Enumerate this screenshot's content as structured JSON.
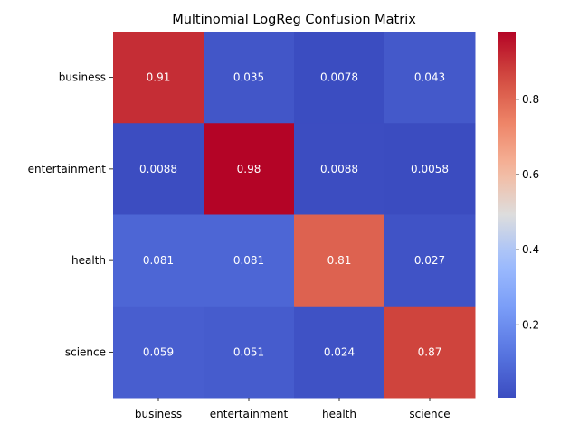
{
  "chart_data": {
    "type": "heatmap",
    "title": "Multinomial LogReg Confusion Matrix",
    "xlabel": "",
    "ylabel": "",
    "rows": [
      "business",
      "entertainment",
      "health",
      "science"
    ],
    "columns": [
      "business",
      "entertainment",
      "health",
      "science"
    ],
    "values": [
      [
        0.91,
        0.035,
        0.0078,
        0.043
      ],
      [
        0.0088,
        0.98,
        0.0088,
        0.0058
      ],
      [
        0.081,
        0.081,
        0.81,
        0.027
      ],
      [
        0.059,
        0.051,
        0.024,
        0.87
      ]
    ],
    "value_labels": [
      [
        "0.91",
        "0.035",
        "0.0078",
        "0.043"
      ],
      [
        "0.0088",
        "0.98",
        "0.0088",
        "0.0058"
      ],
      [
        "0.081",
        "0.081",
        "0.81",
        "0.027"
      ],
      [
        "0.059",
        "0.051",
        "0.024",
        "0.87"
      ]
    ],
    "colormap": "coolwarm",
    "colorbar": {
      "vmin": 0.0058,
      "vmax": 0.98,
      "ticks": [
        0.2,
        0.4,
        0.6,
        0.8
      ],
      "tick_labels": [
        "0.2",
        "0.4",
        "0.6",
        "0.8"
      ]
    },
    "grid": false
  }
}
